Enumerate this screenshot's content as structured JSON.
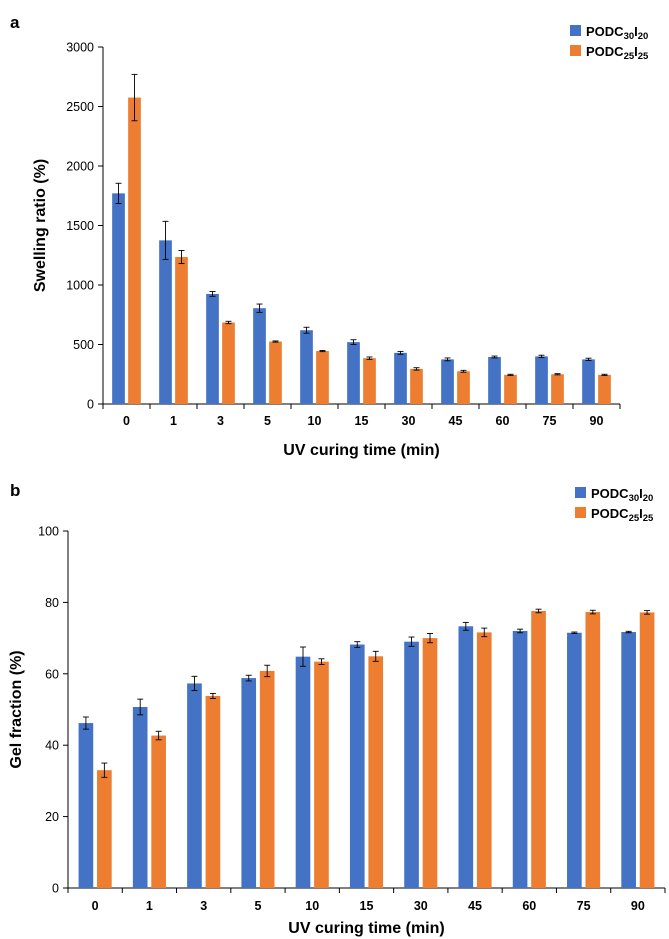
{
  "colors": {
    "series1": "#4472C4",
    "series2": "#ED7D31",
    "axis": "#000000",
    "errorbar": "#000000"
  },
  "chart_data": [
    {
      "panel": "a",
      "type": "bar",
      "xlabel": "UV curing time (min)",
      "ylabel": "Swelling ratio (%)",
      "ylim": [
        0,
        3000
      ],
      "yticks": [
        0,
        500,
        1000,
        1500,
        2000,
        2500,
        3000
      ],
      "grid": false,
      "legend_position": "top-right",
      "categories": [
        "0",
        "1",
        "3",
        "5",
        "10",
        "15",
        "30",
        "45",
        "60",
        "75",
        "90"
      ],
      "series": [
        {
          "name": "PODC30I20",
          "label_base": "PODC",
          "label_parts": [
            "30",
            "I",
            "20"
          ],
          "values": [
            1770,
            1375,
            925,
            805,
            620,
            520,
            430,
            375,
            395,
            400,
            375
          ],
          "errors": [
            85,
            160,
            20,
            35,
            25,
            20,
            12,
            12,
            8,
            10,
            10
          ]
        },
        {
          "name": "PODC25I25",
          "label_base": "PODC",
          "label_parts": [
            "25",
            "I",
            "25"
          ],
          "values": [
            2575,
            1235,
            685,
            525,
            445,
            385,
            295,
            275,
            245,
            250,
            245
          ],
          "errors": [
            195,
            55,
            10,
            5,
            5,
            10,
            10,
            8,
            5,
            5,
            5
          ]
        }
      ]
    },
    {
      "panel": "b",
      "type": "bar",
      "xlabel": "UV curing time (min)",
      "ylabel": "Gel fraction (%)",
      "ylim": [
        0,
        100
      ],
      "yticks": [
        0,
        20,
        40,
        60,
        80,
        100
      ],
      "grid": false,
      "legend_position": "top-right",
      "categories": [
        "0",
        "1",
        "3",
        "5",
        "10",
        "15",
        "30",
        "45",
        "60",
        "75",
        "90"
      ],
      "series": [
        {
          "name": "PODC30I20",
          "label_base": "PODC",
          "label_parts": [
            "30",
            "I",
            "20"
          ],
          "values": [
            46.2,
            50.7,
            57.3,
            58.8,
            64.8,
            68.2,
            69.0,
            73.3,
            72.0,
            71.5,
            71.7
          ],
          "errors": [
            1.7,
            2.2,
            2.0,
            0.8,
            2.7,
            0.8,
            1.3,
            1.1,
            0.5,
            0.2,
            0.2
          ]
        },
        {
          "name": "PODC25I25",
          "label_base": "PODC",
          "label_parts": [
            "25",
            "I",
            "25"
          ],
          "values": [
            33.0,
            42.7,
            53.8,
            60.8,
            63.4,
            64.9,
            70.0,
            71.6,
            77.6,
            77.3,
            77.2
          ],
          "errors": [
            2.0,
            1.2,
            0.7,
            1.6,
            0.8,
            1.4,
            1.3,
            1.2,
            0.5,
            0.5,
            0.5
          ]
        }
      ]
    }
  ]
}
